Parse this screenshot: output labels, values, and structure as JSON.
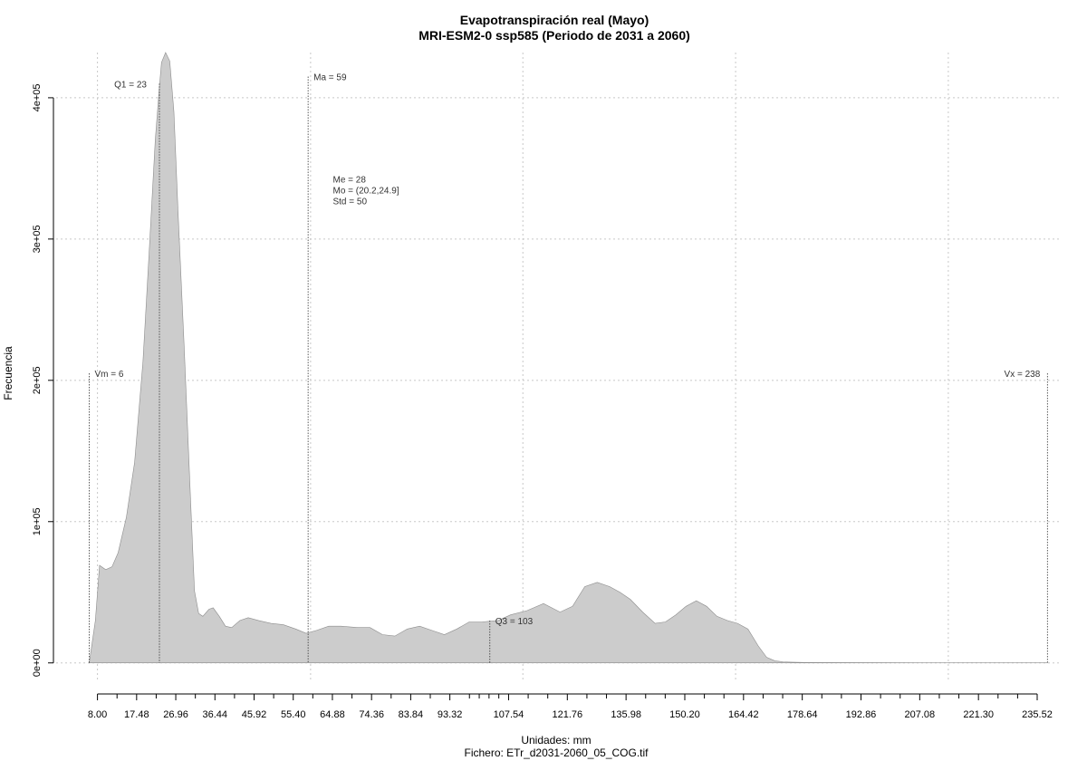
{
  "chart_data": {
    "type": "area",
    "title": "Evapotranspiración real (Mayo)",
    "subtitle": "MRI-ESM2-0 ssp585 (Periodo de 2031 a 2060)",
    "xlabel": "Unidades: mm",
    "ylabel": "Frecuencia",
    "footer": "Fichero: ETr_d2031-2060_05_COG.tif",
    "xlim": [
      -2,
      241
    ],
    "ylim": [
      -13000,
      432000
    ],
    "grid": true,
    "fill_color": "#cccccc",
    "x_ticks": [
      8.0,
      17.48,
      26.96,
      36.44,
      45.92,
      55.4,
      64.88,
      74.36,
      83.84,
      93.32,
      107.54,
      121.76,
      135.98,
      150.2,
      164.42,
      178.64,
      192.86,
      207.08,
      221.3,
      235.52
    ],
    "x_tick_labels": [
      "8.00",
      "17.48",
      "26.96",
      "36.44",
      "45.92",
      "55.40",
      "64.88",
      "74.36",
      "83.84",
      "93.32",
      "107.54",
      "121.76",
      "135.98",
      "150.20",
      "164.42",
      "178.64",
      "192.86",
      "207.08",
      "221.30",
      "235.52"
    ],
    "x_minor_ticks": [
      12.74,
      22.22,
      31.7,
      41.18,
      50.66,
      60.14,
      69.62,
      79.1,
      88.58,
      98.06,
      100.43,
      102.8,
      105.17,
      112.28,
      117.02,
      126.5,
      131.24,
      140.72,
      145.46,
      154.94,
      159.68,
      169.16,
      173.9,
      183.38,
      188.12,
      197.6,
      202.34,
      211.82,
      216.56,
      226.04,
      230.78
    ],
    "y_ticks": [
      0,
      100000,
      200000,
      300000,
      400000
    ],
    "y_tick_labels": [
      "0e+00",
      "1e+05",
      "2e+05",
      "3e+05",
      "4e+05"
    ],
    "x_grid": [
      8,
      59.6,
      111,
      162.5,
      214
    ],
    "series": [
      {
        "x": [
          6,
          7.5,
          8.5,
          10,
          11.5,
          13,
          15,
          17,
          19,
          20.5,
          22,
          23,
          23.5,
          24.5,
          25.5,
          26.5,
          27.5,
          29,
          30.5,
          31.5,
          32.5,
          33.5,
          35,
          36,
          37.5,
          39,
          40.5,
          42.5,
          44.5,
          47,
          50,
          53,
          56,
          58.5,
          61,
          64,
          67,
          71,
          74,
          77,
          80,
          83,
          86,
          89,
          92,
          95,
          98,
          101,
          105,
          108,
          112,
          116,
          120,
          123,
          126,
          129,
          132,
          134.5,
          137,
          140,
          143,
          145.5,
          148,
          150.5,
          153,
          155.5,
          158,
          160.5,
          163,
          165.5,
          168,
          170,
          172,
          174,
          176,
          180,
          200,
          238
        ],
        "y": [
          0,
          30000,
          69000,
          66000,
          68000,
          78000,
          103000,
          142000,
          213000,
          290000,
          370000,
          408000,
          425000,
          432000,
          426000,
          390000,
          320000,
          224000,
          118000,
          51000,
          35000,
          33000,
          38000,
          39000,
          33000,
          26000,
          25000,
          30000,
          32000,
          30000,
          28000,
          27000,
          24000,
          21000,
          23000,
          26000,
          26000,
          25000,
          25000,
          20000,
          19000,
          24000,
          26000,
          23000,
          20000,
          24000,
          29000,
          29000,
          30000,
          34000,
          37000,
          42000,
          36000,
          40000,
          54000,
          57000,
          54000,
          50000,
          45000,
          36000,
          28000,
          29000,
          34000,
          40000,
          44000,
          40000,
          33000,
          30000,
          28000,
          24000,
          12000,
          4000,
          1500,
          800,
          500,
          300,
          100,
          0
        ]
      }
    ],
    "annotations": [
      {
        "label": "Vm = 6",
        "x": 6,
        "y_top": 205000
      },
      {
        "label": "Q1 = 23",
        "x": 23,
        "y_top": 410000
      },
      {
        "label": "Ma = 59",
        "x": 59,
        "y_top": 415000
      },
      {
        "label": "Q3 = 103",
        "x": 103,
        "y_top": 30000
      },
      {
        "label": "Vx = 238",
        "x": 238,
        "y_top": 205000
      }
    ],
    "stats": [
      "Me = 28",
      "Mo = (20.2,24.9]",
      "Std = 50"
    ],
    "stats_anchor": {
      "x": 65,
      "y": 340000
    }
  }
}
